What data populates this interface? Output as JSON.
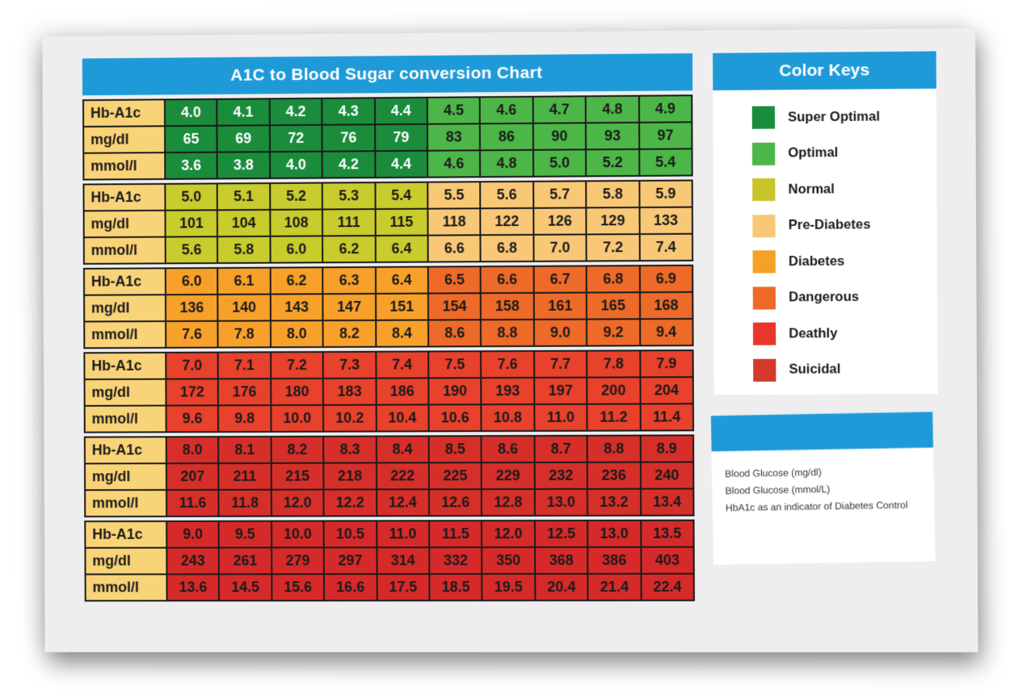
{
  "chart_data": {
    "type": "table",
    "title": "A1C to Blood Sugar conversion Chart",
    "row_labels": [
      "Hb-A1c",
      "mg/dl",
      "mmol/l"
    ],
    "blocks": [
      {
        "hba1c": [
          "4.0",
          "4.1",
          "4.2",
          "4.3",
          "4.4",
          "4.5",
          "4.6",
          "4.7",
          "4.8",
          "4.9"
        ],
        "mgdl": [
          "65",
          "69",
          "72",
          "76",
          "79",
          "83",
          "86",
          "90",
          "93",
          "97"
        ],
        "mmoll": [
          "3.6",
          "3.8",
          "4.0",
          "4.2",
          "4.4",
          "4.6",
          "4.8",
          "5.0",
          "5.2",
          "5.4"
        ],
        "colors": [
          "#1a8c3c",
          "#1a8c3c",
          "#1a8c3c",
          "#1a8c3c",
          "#1a8c3c",
          "#4db648",
          "#4db648",
          "#4db648",
          "#4db648",
          "#4db648"
        ],
        "categories": [
          "Super Optimal",
          "Super Optimal",
          "Super Optimal",
          "Super Optimal",
          "Super Optimal",
          "Optimal",
          "Optimal",
          "Optimal",
          "Optimal",
          "Optimal"
        ]
      },
      {
        "hba1c": [
          "5.0",
          "5.1",
          "5.2",
          "5.3",
          "5.4",
          "5.5",
          "5.6",
          "5.7",
          "5.8",
          "5.9"
        ],
        "mgdl": [
          "101",
          "104",
          "108",
          "111",
          "115",
          "118",
          "122",
          "126",
          "129",
          "133"
        ],
        "mmoll": [
          "5.6",
          "5.8",
          "6.0",
          "6.2",
          "6.4",
          "6.6",
          "6.8",
          "7.0",
          "7.2",
          "7.4"
        ],
        "colors": [
          "#c8cc2c",
          "#c8cc2c",
          "#c8cc2c",
          "#c8cc2c",
          "#c8cc2c",
          "#f9c877",
          "#f9c877",
          "#f9c877",
          "#f9c877",
          "#f9c877"
        ],
        "categories": [
          "Normal",
          "Normal",
          "Normal",
          "Normal",
          "Normal",
          "Pre-Diabetes",
          "Pre-Diabetes",
          "Pre-Diabetes",
          "Pre-Diabetes",
          "Pre-Diabetes"
        ]
      },
      {
        "hba1c": [
          "6.0",
          "6.1",
          "6.2",
          "6.3",
          "6.4",
          "6.5",
          "6.6",
          "6.7",
          "6.8",
          "6.9"
        ],
        "mgdl": [
          "136",
          "140",
          "143",
          "147",
          "151",
          "154",
          "158",
          "161",
          "165",
          "168"
        ],
        "mmoll": [
          "7.6",
          "7.8",
          "8.0",
          "8.2",
          "8.4",
          "8.6",
          "8.8",
          "9.0",
          "9.2",
          "9.4"
        ],
        "colors": [
          "#f7a12b",
          "#f7a12b",
          "#f7a12b",
          "#f7a12b",
          "#f7a12b",
          "#ee6a28",
          "#ee6a28",
          "#ee6a28",
          "#ee6a28",
          "#ee6a28"
        ],
        "categories": [
          "Diabetes",
          "Diabetes",
          "Diabetes",
          "Diabetes",
          "Diabetes",
          "Dangerous",
          "Dangerous",
          "Dangerous",
          "Dangerous",
          "Dangerous"
        ]
      },
      {
        "hba1c": [
          "7.0",
          "7.1",
          "7.2",
          "7.3",
          "7.4",
          "7.5",
          "7.6",
          "7.7",
          "7.8",
          "7.9"
        ],
        "mgdl": [
          "172",
          "176",
          "180",
          "183",
          "186",
          "190",
          "193",
          "197",
          "200",
          "204"
        ],
        "mmoll": [
          "9.6",
          "9.8",
          "10.0",
          "10.2",
          "10.4",
          "10.6",
          "10.8",
          "11.0",
          "11.2",
          "11.4"
        ],
        "colors": [
          "#e8412c",
          "#e8412c",
          "#e8412c",
          "#e8412c",
          "#e8412c",
          "#e8412c",
          "#e8412c",
          "#e8412c",
          "#e8412c",
          "#e8412c"
        ],
        "categories": [
          "Deathly",
          "Deathly",
          "Deathly",
          "Deathly",
          "Deathly",
          "Deathly",
          "Deathly",
          "Deathly",
          "Deathly",
          "Deathly"
        ]
      },
      {
        "hba1c": [
          "8.0",
          "8.1",
          "8.2",
          "8.3",
          "8.4",
          "8.5",
          "8.6",
          "8.7",
          "8.8",
          "8.9"
        ],
        "mgdl": [
          "207",
          "211",
          "215",
          "218",
          "222",
          "225",
          "229",
          "232",
          "236",
          "240"
        ],
        "mmoll": [
          "11.6",
          "11.8",
          "12.0",
          "12.2",
          "12.4",
          "12.6",
          "12.8",
          "13.0",
          "13.2",
          "13.4"
        ],
        "colors": [
          "#d62f2a",
          "#d62f2a",
          "#d62f2a",
          "#d62f2a",
          "#d62f2a",
          "#d62f2a",
          "#d62f2a",
          "#d62f2a",
          "#d62f2a",
          "#d62f2a"
        ],
        "categories": [
          "Suicidal",
          "Suicidal",
          "Suicidal",
          "Suicidal",
          "Suicidal",
          "Suicidal",
          "Suicidal",
          "Suicidal",
          "Suicidal",
          "Suicidal"
        ]
      },
      {
        "hba1c": [
          "9.0",
          "9.5",
          "10.0",
          "10.5",
          "11.0",
          "11.5",
          "12.0",
          "12.5",
          "13.0",
          "13.5"
        ],
        "mgdl": [
          "243",
          "261",
          "279",
          "297",
          "314",
          "332",
          "350",
          "368",
          "386",
          "403"
        ],
        "mmoll": [
          "13.6",
          "14.5",
          "15.6",
          "16.6",
          "17.5",
          "18.5",
          "19.5",
          "20.4",
          "21.4",
          "22.4"
        ],
        "colors": [
          "#d62a2a",
          "#d62a2a",
          "#d62a2a",
          "#d62a2a",
          "#d62a2a",
          "#d62a2a",
          "#d62a2a",
          "#d62a2a",
          "#d62a2a",
          "#d62a2a"
        ],
        "categories": [
          "Suicidal",
          "Suicidal",
          "Suicidal",
          "Suicidal",
          "Suicidal",
          "Suicidal",
          "Suicidal",
          "Suicidal",
          "Suicidal",
          "Suicidal"
        ]
      }
    ],
    "legend": [
      {
        "label": "Super Optimal",
        "color": "#1a8c3c"
      },
      {
        "label": "Optimal",
        "color": "#4db648"
      },
      {
        "label": "Normal",
        "color": "#c8c42a"
      },
      {
        "label": "Pre-Diabetes",
        "color": "#f9c877"
      },
      {
        "label": "Diabetes",
        "color": "#f5a123"
      },
      {
        "label": "Dangerous",
        "color": "#ee6a28"
      },
      {
        "label": "Deathly",
        "color": "#e8372a"
      },
      {
        "label": "Suicidal",
        "color": "#d33a2c"
      }
    ]
  },
  "keys_panel": {
    "title": "Color Keys"
  },
  "info_panel": {
    "lines": [
      "Blood Glucose (mg/dl)",
      "Blood Glucose (mmol/L)",
      "HbA1c as an indicator of Diabetes Control"
    ]
  },
  "colors": {
    "header_blue": "#1f9ad9",
    "label_yellow": "#f9d377"
  }
}
